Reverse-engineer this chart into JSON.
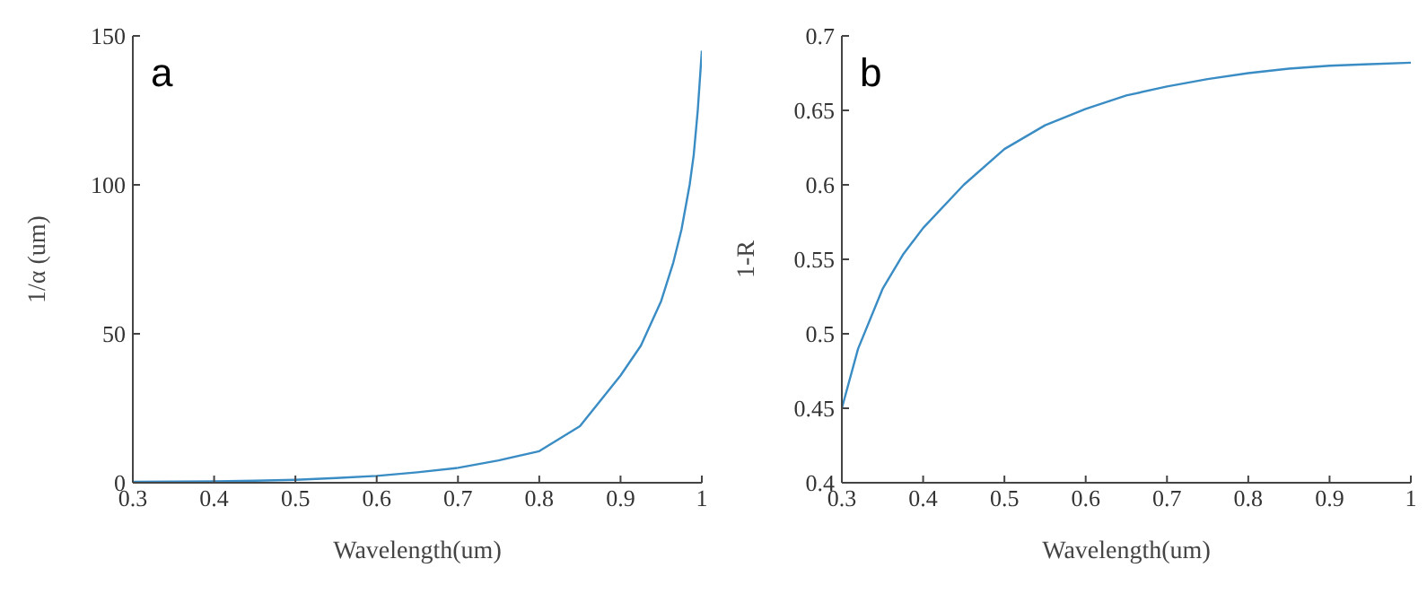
{
  "chart_data": [
    {
      "type": "line",
      "annotations": [
        "a"
      ],
      "xlabel": "Wavelength(um)",
      "ylabel": "1/α (um)",
      "xlim": [
        0.3,
        1
      ],
      "xticks": [
        0.3,
        0.4,
        0.5,
        0.6,
        0.7,
        0.8,
        0.9,
        1
      ],
      "ylim": [
        0,
        150
      ],
      "yticks": [
        0,
        50,
        100,
        150
      ],
      "grid": false,
      "legend": false,
      "marker": "none",
      "line_style": "solid",
      "series": [
        {
          "color": "#3a8cc4",
          "x": [
            0.3,
            0.35,
            0.4,
            0.45,
            0.5,
            0.55,
            0.6,
            0.65,
            0.7,
            0.75,
            0.8,
            0.85,
            0.9,
            0.925,
            0.95,
            0.965,
            0.975,
            0.985,
            0.99,
            0.995,
            1.0
          ],
          "values": [
            0.3,
            0.4,
            0.5,
            0.7,
            1,
            1.6,
            2.3,
            3.5,
            5,
            7.5,
            10.6,
            19,
            36,
            46,
            61,
            74,
            85,
            100,
            110,
            125,
            145
          ]
        }
      ]
    },
    {
      "type": "line",
      "annotations": [
        "b"
      ],
      "xlabel": "Wavelength(um)",
      "ylabel": "1-R",
      "xlim": [
        0.3,
        1
      ],
      "xticks": [
        0.3,
        0.4,
        0.5,
        0.6,
        0.7,
        0.8,
        0.9,
        1
      ],
      "ylim": [
        0.4,
        0.7
      ],
      "yticks": [
        0.4,
        0.45,
        0.5,
        0.55,
        0.6,
        0.65,
        0.7
      ],
      "grid": false,
      "legend": false,
      "marker": "none",
      "line_style": "solid",
      "series": [
        {
          "color": "#3a8cc4",
          "x": [
            0.3,
            0.32,
            0.35,
            0.375,
            0.4,
            0.45,
            0.5,
            0.55,
            0.6,
            0.65,
            0.7,
            0.75,
            0.8,
            0.85,
            0.9,
            0.95,
            1.0
          ],
          "values": [
            0.45,
            0.49,
            0.53,
            0.553,
            0.571,
            0.6,
            0.624,
            0.64,
            0.651,
            0.66,
            0.666,
            0.671,
            0.675,
            0.678,
            0.68,
            0.681,
            0.682
          ]
        }
      ]
    }
  ]
}
